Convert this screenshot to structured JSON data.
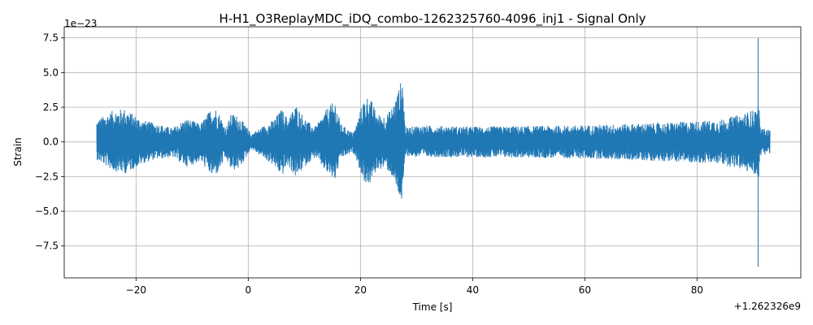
{
  "chart_data": {
    "type": "line",
    "title": "H-H1_O3ReplayMDC_iDQ_combo-1262325760-4096_inj1 - Signal Only",
    "xlabel": "Time [s]",
    "ylabel": "Strain",
    "x_offset_label": "+1.262326e9",
    "y_scale_label": "1e−23",
    "xlim": [
      -32.8,
      98.5
    ],
    "ylim": [
      -9.8,
      8.3
    ],
    "x_ticks": [
      -20,
      0,
      20,
      40,
      60,
      80
    ],
    "x_tick_labels": [
      "−20",
      "0",
      "20",
      "40",
      "60",
      "80"
    ],
    "y_ticks": [
      -7.5,
      -5.0,
      -2.5,
      0.0,
      2.5,
      5.0,
      7.5
    ],
    "y_tick_labels": [
      "−7.5",
      "−5.0",
      "−2.5",
      "0.0",
      "2.5",
      "5.0",
      "7.5"
    ],
    "grid": true,
    "series": [
      {
        "color": "#1f77b4",
        "x_range": [
          -27.0,
          93.0
        ],
        "envelope": {
          "x": [
            -27.0,
            -24.0,
            -22.0,
            -19.0,
            -17.0,
            -13.5,
            -11.0,
            -8.5,
            -6.5,
            -5.5,
            -4.0,
            -3.0,
            -1.5,
            0.5,
            2.5,
            4.5,
            6.0,
            7.0,
            8.5,
            10.5,
            12.0,
            14.0,
            15.5,
            16.5,
            18.5,
            19.0,
            20.5,
            21.5,
            23.0,
            24.5,
            25.5,
            26.5,
            27.5,
            28.0,
            30.0,
            40.0,
            60.0,
            75.0,
            84.0,
            88.0,
            90.5,
            91.0,
            91.3,
            93.0
          ],
          "y_max": [
            1.6,
            2.3,
            2.4,
            1.6,
            1.4,
            1.0,
            1.7,
            1.3,
            2.5,
            2.4,
            1.0,
            2.1,
            1.8,
            0.6,
            1.1,
            1.6,
            2.4,
            1.7,
            2.7,
            1.5,
            1.1,
            2.4,
            3.0,
            1.3,
            0.7,
            0.9,
            3.0,
            3.4,
            2.0,
            1.9,
            2.4,
            3.4,
            4.8,
            1.0,
            1.2,
            1.1,
            1.2,
            1.4,
            1.6,
            2.0,
            2.4,
            2.8,
            1.0,
            0.9
          ],
          "y_min": [
            -1.3,
            -2.1,
            -2.3,
            -1.6,
            -1.3,
            -1.1,
            -1.8,
            -1.4,
            -2.5,
            -2.3,
            -1.2,
            -2.1,
            -1.9,
            -0.5,
            -1.1,
            -1.7,
            -2.5,
            -1.7,
            -2.6,
            -1.6,
            -1.1,
            -2.3,
            -2.8,
            -1.2,
            -0.8,
            -0.9,
            -2.8,
            -3.2,
            -2.0,
            -1.9,
            -2.4,
            -3.6,
            -4.6,
            -1.0,
            -1.1,
            -1.1,
            -1.2,
            -1.4,
            -1.6,
            -2.0,
            -2.4,
            -2.6,
            -1.0,
            -0.8
          ]
        },
        "spike": {
          "x": 90.9,
          "y_max": 7.5,
          "y_min": -9.0
        }
      }
    ]
  }
}
